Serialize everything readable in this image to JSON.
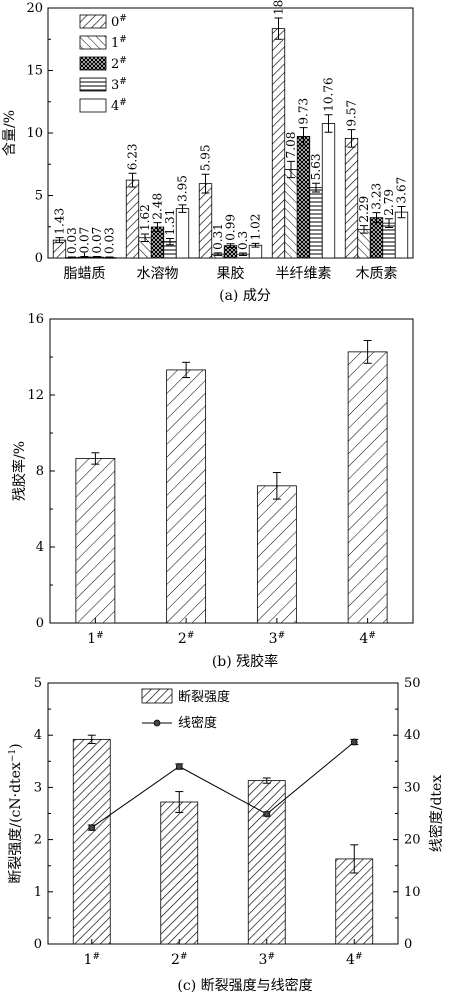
{
  "chart_data": [
    {
      "type": "bar",
      "caption": "(a) 成分",
      "ylabel": "含量/%",
      "ylim": [
        0,
        20
      ],
      "yticks": [
        0,
        5,
        10,
        15,
        20
      ],
      "categories": [
        "脂蜡质",
        "水溶物",
        "果胶",
        "半纤维素",
        "木质素"
      ],
      "series": [
        {
          "name": "0#",
          "sup": "#",
          "base": "0",
          "pattern": "hatch-right",
          "values": [
            1.43,
            6.23,
            5.95,
            18.35,
            9.57
          ],
          "errors": [
            0.2,
            0.55,
            0.75,
            0.85,
            0.7
          ],
          "labels": [
            "1.43",
            "6.23",
            "5.95",
            "18.35",
            "9.57"
          ]
        },
        {
          "name": "1#",
          "sup": "#",
          "base": "1",
          "pattern": "hatch-left",
          "values": [
            0.03,
            1.62,
            0.31,
            7.08,
            2.29
          ],
          "errors": [
            0.05,
            0.3,
            0.1,
            0.65,
            0.3
          ],
          "labels": [
            "0.03",
            "1.62",
            "0.31",
            "7.08",
            "2.29"
          ]
        },
        {
          "name": "2#",
          "sup": "#",
          "base": "2",
          "pattern": "crosshatch",
          "values": [
            0.07,
            2.48,
            0.99,
            9.73,
            3.23
          ],
          "errors": [
            0.05,
            0.35,
            0.15,
            0.7,
            0.4
          ],
          "labels": [
            "0.07",
            "2.48",
            "0.99",
            "9.73",
            "3.23"
          ]
        },
        {
          "name": "3#",
          "sup": "#",
          "base": "3",
          "pattern": "horizontal",
          "values": [
            0.07,
            1.31,
            0.3,
            5.63,
            2.79
          ],
          "errors": [
            0.05,
            0.25,
            0.1,
            0.35,
            0.35
          ],
          "labels": [
            "0.07",
            "1.31",
            "0.3",
            "5.63",
            "2.79"
          ]
        },
        {
          "name": "4#",
          "sup": "#",
          "base": "4",
          "pattern": "empty",
          "values": [
            0.03,
            3.95,
            1.02,
            10.76,
            3.67
          ],
          "errors": [
            0.05,
            0.3,
            0.15,
            0.7,
            0.45
          ],
          "labels": [
            "0.03",
            "3.95",
            "1.02",
            "10.76",
            "3.67"
          ]
        }
      ],
      "legend_position": "top-left"
    },
    {
      "type": "bar",
      "caption": "(b) 残胶率",
      "ylabel": "残胶率/%",
      "ylim": [
        0,
        16
      ],
      "yticks": [
        0,
        4,
        8,
        12,
        16
      ],
      "categories": [
        {
          "base": "1",
          "sup": "#"
        },
        {
          "base": "2",
          "sup": "#"
        },
        {
          "base": "3",
          "sup": "#"
        },
        {
          "base": "4",
          "sup": "#"
        }
      ],
      "values": [
        8.66,
        13.32,
        7.22,
        14.27
      ],
      "errors": [
        0.3,
        0.4,
        0.7,
        0.6
      ]
    },
    {
      "type": "bar+line",
      "caption": "(c) 断裂强度与线密度",
      "ylabel_left": "断裂强度/(cN·dtex",
      "ylabel_left_sup": "−1",
      "ylabel_left_tail": ")",
      "ylabel_right": "线密度/dtex",
      "ylim_left": [
        0,
        5
      ],
      "ylim_right": [
        0,
        50
      ],
      "yticks_left": [
        0,
        1,
        2,
        3,
        4,
        5
      ],
      "yticks_right": [
        0,
        10,
        20,
        30,
        40,
        50
      ],
      "categories": [
        {
          "base": "1",
          "sup": "#"
        },
        {
          "base": "2",
          "sup": "#"
        },
        {
          "base": "3",
          "sup": "#"
        },
        {
          "base": "4",
          "sup": "#"
        }
      ],
      "bar_series": {
        "name": "断裂强度",
        "values": [
          3.92,
          2.72,
          3.13,
          1.63
        ],
        "errors": [
          0.08,
          0.2,
          0.05,
          0.27
        ]
      },
      "line_series": {
        "name": "线密度",
        "values": [
          22.3,
          34.0,
          24.9,
          38.7
        ],
        "errors": [
          0.5,
          0.5,
          0.4,
          0.5
        ]
      },
      "legend_position": "top-center"
    }
  ]
}
